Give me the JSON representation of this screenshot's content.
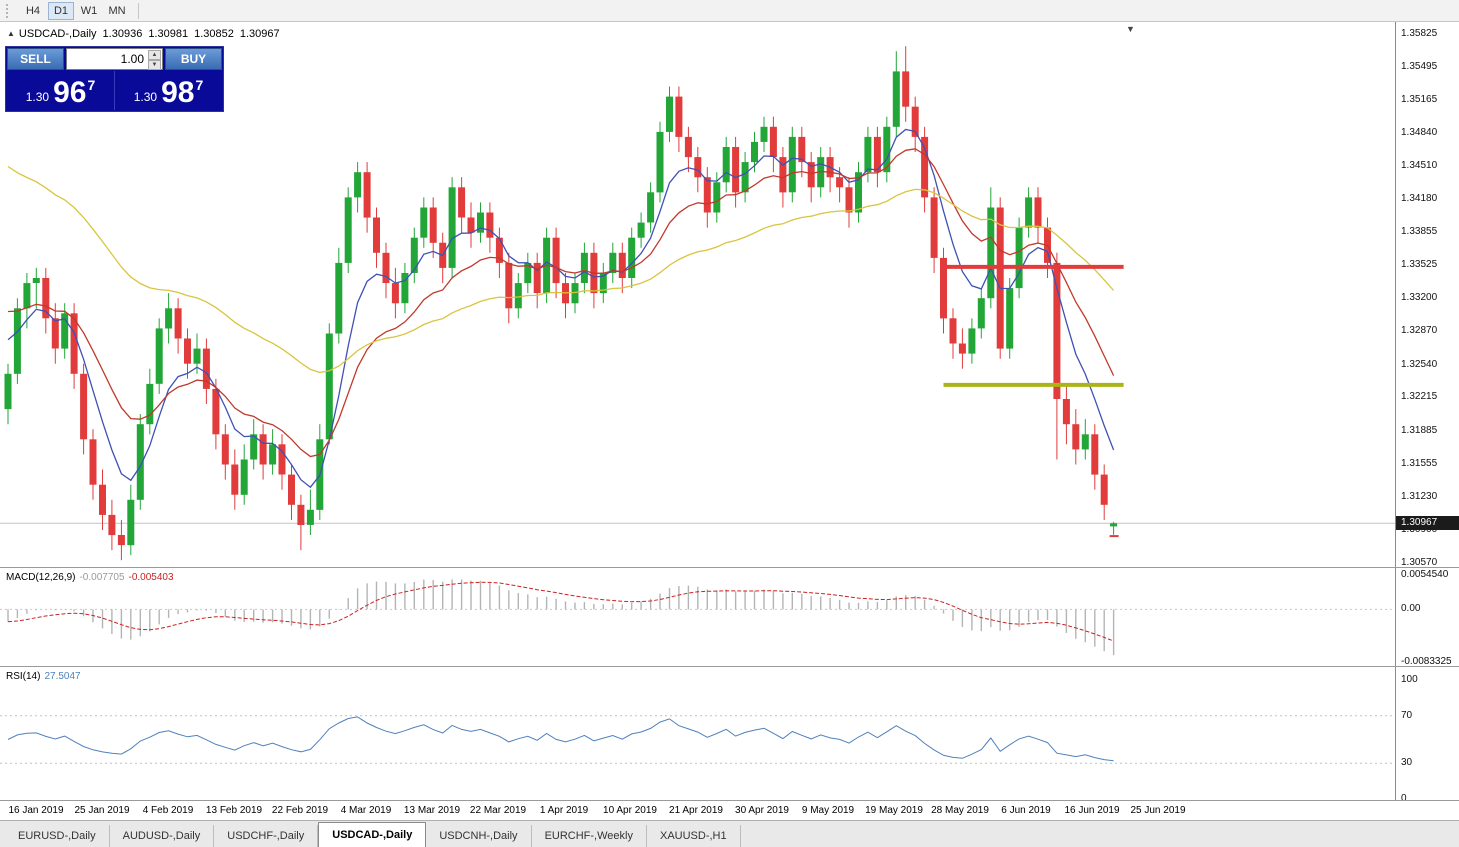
{
  "icons": {
    "collapse": "▲",
    "shift_marker": "▼",
    "spinner_up": "▲",
    "spinner_down": "▼"
  },
  "toolbar": {
    "timeframes": [
      {
        "label": "H4",
        "active": false
      },
      {
        "label": "D1",
        "active": true
      },
      {
        "label": "W1",
        "active": false
      },
      {
        "label": "MN",
        "active": false
      }
    ]
  },
  "chart_header": {
    "symbol": "USDCAD-,Daily",
    "open": "1.30936",
    "high": "1.30981",
    "low": "1.30852",
    "close": "1.30967"
  },
  "trade_panel": {
    "sell_label": "SELL",
    "buy_label": "BUY",
    "volume": "1.00",
    "sell_price": {
      "small": "1.30",
      "big": "96",
      "sup": "7"
    },
    "buy_price": {
      "small": "1.30",
      "big": "98",
      "sup": "7"
    }
  },
  "price_axis": {
    "labels": [
      "1.35825",
      "1.35495",
      "1.35165",
      "1.34840",
      "1.34510",
      "1.34180",
      "1.33855",
      "1.33525",
      "1.33200",
      "1.32870",
      "1.32540",
      "1.32215",
      "1.31885",
      "1.31555",
      "1.31230",
      "1.30900",
      "1.30570"
    ],
    "current_badge": "1.30967"
  },
  "chart_data": {
    "type": "candlestick",
    "symbol": "USDCAD",
    "timeframe": "Daily",
    "bid": 1.30967,
    "up_color": "#21a637",
    "down_color": "#e23b3b",
    "x_dates": [
      "16 Jan 2019",
      "25 Jan 2019",
      "4 Feb 2019",
      "13 Feb 2019",
      "22 Feb 2019",
      "4 Mar 2019",
      "13 Mar 2019",
      "22 Mar 2019",
      "1 Apr 2019",
      "10 Apr 2019",
      "21 Apr 2019",
      "30 Apr 2019",
      "9 May 2019",
      "19 May 2019",
      "28 May 2019",
      "6 Jun 2019",
      "16 Jun 2019",
      "25 Jun 2019"
    ],
    "candles": [
      [
        1.321,
        1.3255,
        1.3195,
        1.3245
      ],
      [
        1.3245,
        1.332,
        1.3235,
        1.331
      ],
      [
        1.331,
        1.3345,
        1.329,
        1.3335
      ],
      [
        1.3335,
        1.335,
        1.331,
        1.334
      ],
      [
        1.334,
        1.335,
        1.3285,
        1.33
      ],
      [
        1.33,
        1.3315,
        1.3255,
        1.327
      ],
      [
        1.327,
        1.3315,
        1.326,
        1.3305
      ],
      [
        1.3305,
        1.3315,
        1.323,
        1.3245
      ],
      [
        1.3245,
        1.3255,
        1.3165,
        1.318
      ],
      [
        1.318,
        1.319,
        1.312,
        1.3135
      ],
      [
        1.3135,
        1.315,
        1.309,
        1.3105
      ],
      [
        1.3105,
        1.312,
        1.307,
        1.3085
      ],
      [
        1.3085,
        1.31,
        1.306,
        1.3075
      ],
      [
        1.3075,
        1.3135,
        1.3065,
        1.312
      ],
      [
        1.312,
        1.3205,
        1.311,
        1.3195
      ],
      [
        1.3195,
        1.325,
        1.3185,
        1.3235
      ],
      [
        1.3235,
        1.33,
        1.3225,
        1.329
      ],
      [
        1.329,
        1.3325,
        1.3275,
        1.331
      ],
      [
        1.331,
        1.332,
        1.3265,
        1.328
      ],
      [
        1.328,
        1.329,
        1.324,
        1.3255
      ],
      [
        1.3255,
        1.3285,
        1.3245,
        1.327
      ],
      [
        1.327,
        1.328,
        1.3215,
        1.323
      ],
      [
        1.323,
        1.324,
        1.317,
        1.3185
      ],
      [
        1.3185,
        1.3195,
        1.314,
        1.3155
      ],
      [
        1.3155,
        1.317,
        1.311,
        1.3125
      ],
      [
        1.3125,
        1.3175,
        1.3115,
        1.316
      ],
      [
        1.316,
        1.32,
        1.315,
        1.3185
      ],
      [
        1.3185,
        1.3195,
        1.314,
        1.3155
      ],
      [
        1.3155,
        1.319,
        1.3145,
        1.3175
      ],
      [
        1.3175,
        1.3185,
        1.313,
        1.3145
      ],
      [
        1.3145,
        1.3155,
        1.31,
        1.3115
      ],
      [
        1.3115,
        1.3125,
        1.307,
        1.3095
      ],
      [
        1.3095,
        1.313,
        1.3085,
        1.311
      ],
      [
        1.311,
        1.3195,
        1.31,
        1.318
      ],
      [
        1.318,
        1.3295,
        1.3175,
        1.3285
      ],
      [
        1.3285,
        1.337,
        1.3275,
        1.3355
      ],
      [
        1.3355,
        1.343,
        1.3345,
        1.342
      ],
      [
        1.342,
        1.3455,
        1.3405,
        1.3445
      ],
      [
        1.3445,
        1.3455,
        1.3385,
        1.34
      ],
      [
        1.34,
        1.341,
        1.335,
        1.3365
      ],
      [
        1.3365,
        1.3375,
        1.332,
        1.3335
      ],
      [
        1.3335,
        1.335,
        1.33,
        1.3315
      ],
      [
        1.3315,
        1.3355,
        1.3305,
        1.3345
      ],
      [
        1.3345,
        1.339,
        1.3335,
        1.338
      ],
      [
        1.338,
        1.342,
        1.337,
        1.341
      ],
      [
        1.341,
        1.342,
        1.336,
        1.3375
      ],
      [
        1.3375,
        1.3385,
        1.3335,
        1.335
      ],
      [
        1.335,
        1.344,
        1.334,
        1.343
      ],
      [
        1.343,
        1.344,
        1.3385,
        1.34
      ],
      [
        1.34,
        1.3415,
        1.337,
        1.3385
      ],
      [
        1.3385,
        1.3415,
        1.3375,
        1.3405
      ],
      [
        1.3405,
        1.3415,
        1.3365,
        1.338
      ],
      [
        1.338,
        1.339,
        1.334,
        1.3355
      ],
      [
        1.3355,
        1.3365,
        1.3295,
        1.331
      ],
      [
        1.331,
        1.3345,
        1.33,
        1.3335
      ],
      [
        1.3335,
        1.3365,
        1.3325,
        1.3355
      ],
      [
        1.3355,
        1.3365,
        1.331,
        1.3325
      ],
      [
        1.3325,
        1.339,
        1.3315,
        1.338
      ],
      [
        1.338,
        1.339,
        1.332,
        1.3335
      ],
      [
        1.3335,
        1.3345,
        1.33,
        1.3315
      ],
      [
        1.3315,
        1.3345,
        1.3305,
        1.3335
      ],
      [
        1.3335,
        1.3375,
        1.3325,
        1.3365
      ],
      [
        1.3365,
        1.3375,
        1.331,
        1.3325
      ],
      [
        1.3325,
        1.3355,
        1.3315,
        1.3345
      ],
      [
        1.3345,
        1.3375,
        1.3335,
        1.3365
      ],
      [
        1.3365,
        1.3375,
        1.3325,
        1.334
      ],
      [
        1.334,
        1.339,
        1.333,
        1.338
      ],
      [
        1.338,
        1.3405,
        1.337,
        1.3395
      ],
      [
        1.3395,
        1.3435,
        1.3385,
        1.3425
      ],
      [
        1.3425,
        1.3495,
        1.3415,
        1.3485
      ],
      [
        1.3485,
        1.353,
        1.3475,
        1.352
      ],
      [
        1.352,
        1.353,
        1.3465,
        1.348
      ],
      [
        1.348,
        1.349,
        1.3445,
        1.346
      ],
      [
        1.346,
        1.347,
        1.3425,
        1.344
      ],
      [
        1.344,
        1.345,
        1.339,
        1.3405
      ],
      [
        1.3405,
        1.3445,
        1.3395,
        1.3435
      ],
      [
        1.3435,
        1.348,
        1.3425,
        1.347
      ],
      [
        1.347,
        1.348,
        1.341,
        1.3425
      ],
      [
        1.3425,
        1.3465,
        1.3415,
        1.3455
      ],
      [
        1.3455,
        1.3485,
        1.3445,
        1.3475
      ],
      [
        1.3475,
        1.35,
        1.3465,
        1.349
      ],
      [
        1.349,
        1.35,
        1.3445,
        1.346
      ],
      [
        1.346,
        1.347,
        1.341,
        1.3425
      ],
      [
        1.3425,
        1.349,
        1.3415,
        1.348
      ],
      [
        1.348,
        1.349,
        1.344,
        1.3455
      ],
      [
        1.3455,
        1.3465,
        1.3415,
        1.343
      ],
      [
        1.343,
        1.347,
        1.342,
        1.346
      ],
      [
        1.346,
        1.347,
        1.3425,
        1.344
      ],
      [
        1.344,
        1.345,
        1.3415,
        1.343
      ],
      [
        1.343,
        1.344,
        1.339,
        1.3405
      ],
      [
        1.3405,
        1.3455,
        1.3395,
        1.3445
      ],
      [
        1.3445,
        1.349,
        1.3435,
        1.348
      ],
      [
        1.348,
        1.349,
        1.343,
        1.3445
      ],
      [
        1.3445,
        1.35,
        1.3435,
        1.349
      ],
      [
        1.349,
        1.3565,
        1.348,
        1.3545
      ],
      [
        1.3545,
        1.357,
        1.3495,
        1.351
      ],
      [
        1.351,
        1.352,
        1.3465,
        1.348
      ],
      [
        1.348,
        1.349,
        1.3405,
        1.342
      ],
      [
        1.342,
        1.343,
        1.3345,
        1.336
      ],
      [
        1.336,
        1.337,
        1.3285,
        1.33
      ],
      [
        1.33,
        1.331,
        1.326,
        1.3275
      ],
      [
        1.3275,
        1.329,
        1.325,
        1.3265
      ],
      [
        1.3265,
        1.33,
        1.3255,
        1.329
      ],
      [
        1.329,
        1.333,
        1.328,
        1.332
      ],
      [
        1.332,
        1.343,
        1.331,
        1.341
      ],
      [
        1.341,
        1.342,
        1.326,
        1.327
      ],
      [
        1.327,
        1.334,
        1.326,
        1.333
      ],
      [
        1.333,
        1.34,
        1.332,
        1.339
      ],
      [
        1.339,
        1.343,
        1.338,
        1.342
      ],
      [
        1.342,
        1.343,
        1.3375,
        1.339
      ],
      [
        1.339,
        1.34,
        1.334,
        1.3355
      ],
      [
        1.3355,
        1.3365,
        1.316,
        1.322
      ],
      [
        1.322,
        1.3235,
        1.3175,
        1.3195
      ],
      [
        1.3195,
        1.321,
        1.3155,
        1.317
      ],
      [
        1.317,
        1.32,
        1.316,
        1.3185
      ],
      [
        1.3185,
        1.3195,
        1.313,
        1.3145
      ],
      [
        1.3145,
        1.3155,
        1.31,
        1.3115
      ],
      [
        1.30936,
        1.30981,
        1.30852,
        1.30967
      ]
    ],
    "moving_averages": [
      {
        "period": 7,
        "color": "#3f51b5",
        "seed": 1.329
      },
      {
        "period": 16,
        "color": "#c0392b",
        "seed": 1.3315
      },
      {
        "period": 45,
        "color": "#d9c43f",
        "seed": 1.346
      }
    ],
    "objects": [
      {
        "name": "resistance-line",
        "price": 1.3351,
        "color": "#e23b3b"
      },
      {
        "name": "support-line",
        "price": 1.3234,
        "color": "#aab414"
      }
    ],
    "macd": {
      "label": "MACD(12,26,9)",
      "fast": 12,
      "slow": 26,
      "signal": 9,
      "value_main": "-0.007705",
      "value_signal": "-0.005403",
      "axis": [
        "0.0054540",
        "0.00",
        "-0.0083325"
      ],
      "hist_color": "#b4b4b4",
      "signal_color": "#cc2222"
    },
    "rsi": {
      "label": "RSI(14)",
      "period": 14,
      "value": "27.5047",
      "axis": [
        "100",
        "70",
        "30",
        "0"
      ],
      "levels": [
        70,
        30
      ],
      "color": "#4f81bd"
    }
  },
  "tabs": {
    "items": [
      "EURUSD-,Daily",
      "AUDUSD-,Daily",
      "USDCHF-,Daily",
      "USDCAD-,Daily",
      "USDCNH-,Daily",
      "EURCHF-,Weekly",
      "XAUUSD-,H1"
    ],
    "active_index": 3
  }
}
